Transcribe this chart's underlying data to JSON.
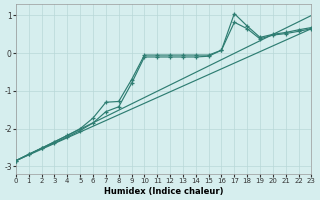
{
  "xlabel": "Humidex (Indice chaleur)",
  "background_color": "#d6eeee",
  "grid_color": "#b8d8d8",
  "line_color": "#2e7d72",
  "xlim": [
    0,
    23
  ],
  "ylim": [
    -3.2,
    1.3
  ],
  "xticks": [
    0,
    1,
    2,
    3,
    4,
    5,
    6,
    7,
    8,
    9,
    10,
    11,
    12,
    13,
    14,
    15,
    16,
    17,
    18,
    19,
    20,
    21,
    22,
    23
  ],
  "yticks": [
    -3,
    -2,
    -1,
    0,
    1
  ],
  "straight_line1": {
    "x": [
      0,
      23
    ],
    "y": [
      -2.85,
      1.0
    ]
  },
  "straight_line2": {
    "x": [
      0,
      23
    ],
    "y": [
      -2.85,
      0.65
    ]
  },
  "marked_line1": {
    "x": [
      0,
      1,
      2,
      3,
      4,
      5,
      6,
      7,
      8,
      9,
      10,
      11,
      12,
      13,
      14,
      15,
      16,
      17,
      18,
      19,
      20,
      21,
      22,
      23
    ],
    "y": [
      -2.85,
      -2.68,
      -2.52,
      -2.35,
      -2.18,
      -2.0,
      -1.72,
      -1.3,
      -1.28,
      -0.7,
      -0.05,
      -0.05,
      -0.05,
      -0.05,
      -0.05,
      -0.05,
      0.08,
      1.05,
      0.72,
      0.42,
      0.5,
      0.55,
      0.62,
      0.68
    ]
  },
  "marked_line2": {
    "x": [
      0,
      1,
      2,
      3,
      4,
      5,
      6,
      7,
      8,
      9,
      10,
      11,
      12,
      13,
      14,
      15,
      16,
      17,
      18,
      19,
      20,
      21,
      22,
      23
    ],
    "y": [
      -2.85,
      -2.68,
      -2.52,
      -2.38,
      -2.22,
      -2.05,
      -1.85,
      -1.55,
      -1.42,
      -0.8,
      -0.1,
      -0.1,
      -0.1,
      -0.1,
      -0.1,
      -0.08,
      0.08,
      0.82,
      0.65,
      0.38,
      0.48,
      0.52,
      0.58,
      0.65
    ]
  }
}
